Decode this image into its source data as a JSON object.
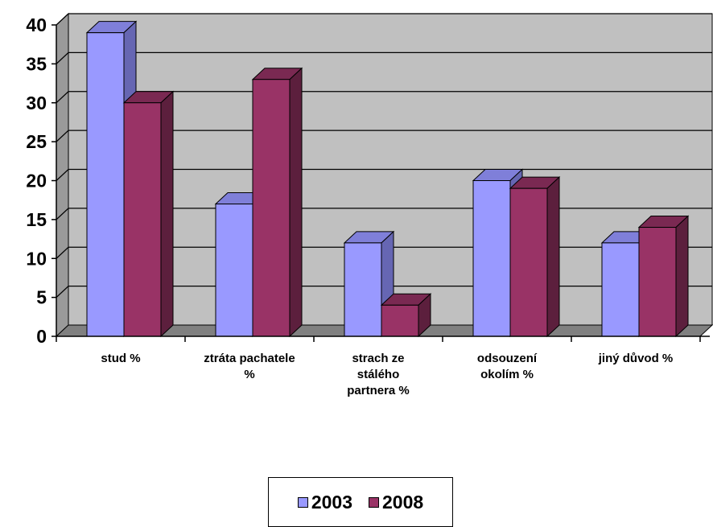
{
  "chart_data": {
    "type": "bar",
    "three_d": true,
    "categories": [
      [
        "stud %"
      ],
      [
        "ztráta pachatele",
        "%"
      ],
      [
        "strach ze",
        "stálého",
        "partnera %"
      ],
      [
        "odsouzení",
        "okolím %"
      ],
      [
        "jiný důvod %"
      ]
    ],
    "series": [
      {
        "name": "2003",
        "values": [
          39,
          17,
          12,
          20,
          12
        ],
        "color": "#9999ff",
        "side_color": "#6666b3",
        "top_color": "#7f7fd9"
      },
      {
        "name": "2008",
        "values": [
          30,
          33,
          4,
          19,
          14
        ],
        "color": "#993366",
        "side_color": "#5c1f3d",
        "top_color": "#7a2952"
      }
    ],
    "ylim": [
      0,
      40
    ],
    "yticks": [
      0,
      5,
      10,
      15,
      20,
      25,
      30,
      35,
      40
    ],
    "grid": true,
    "wall_color": "#c0c0c0",
    "legend_position": "bottom"
  }
}
